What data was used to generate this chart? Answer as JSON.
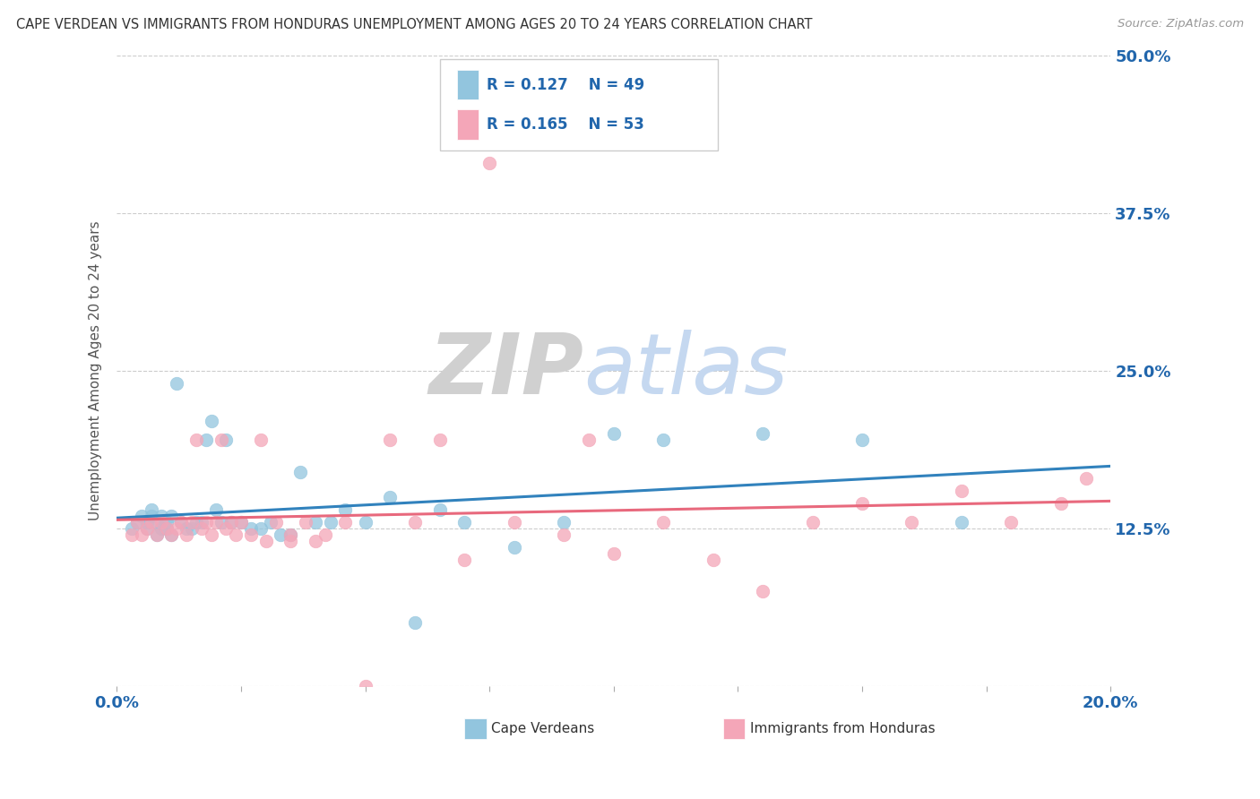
{
  "title": "CAPE VERDEAN VS IMMIGRANTS FROM HONDURAS UNEMPLOYMENT AMONG AGES 20 TO 24 YEARS CORRELATION CHART",
  "source": "Source: ZipAtlas.com",
  "ylabel": "Unemployment Among Ages 20 to 24 years",
  "xlim": [
    0.0,
    0.2
  ],
  "ylim": [
    0.0,
    0.5
  ],
  "yticks": [
    0.0,
    0.125,
    0.25,
    0.375,
    0.5
  ],
  "ytick_labels": [
    "",
    "12.5%",
    "25.0%",
    "37.5%",
    "50.0%"
  ],
  "xticks": [
    0.0,
    0.025,
    0.05,
    0.075,
    0.1,
    0.125,
    0.15,
    0.175,
    0.2
  ],
  "watermark_zip": "ZIP",
  "watermark_atlas": "atlas",
  "legend_R1": "R = 0.127",
  "legend_N1": "N = 49",
  "legend_R2": "R = 0.165",
  "legend_N2": "N = 53",
  "legend_label1": "Cape Verdeans",
  "legend_label2": "Immigrants from Honduras",
  "color_blue": "#92c5de",
  "color_pink": "#f4a6b8",
  "color_blue_line": "#3182bd",
  "color_pink_line": "#e8697d",
  "color_text_blue": "#2166ac",
  "color_grid": "#cccccc",
  "blue_x": [
    0.003,
    0.004,
    0.005,
    0.006,
    0.006,
    0.007,
    0.007,
    0.008,
    0.008,
    0.009,
    0.009,
    0.01,
    0.01,
    0.011,
    0.011,
    0.012,
    0.013,
    0.014,
    0.015,
    0.016,
    0.017,
    0.018,
    0.019,
    0.02,
    0.021,
    0.022,
    0.023,
    0.025,
    0.027,
    0.029,
    0.031,
    0.033,
    0.035,
    0.037,
    0.04,
    0.043,
    0.046,
    0.05,
    0.055,
    0.06,
    0.065,
    0.07,
    0.08,
    0.09,
    0.1,
    0.11,
    0.13,
    0.15,
    0.17
  ],
  "blue_y": [
    0.125,
    0.13,
    0.135,
    0.125,
    0.13,
    0.135,
    0.14,
    0.13,
    0.12,
    0.135,
    0.125,
    0.13,
    0.125,
    0.135,
    0.12,
    0.24,
    0.13,
    0.125,
    0.125,
    0.13,
    0.13,
    0.195,
    0.21,
    0.14,
    0.13,
    0.195,
    0.13,
    0.13,
    0.125,
    0.125,
    0.13,
    0.12,
    0.12,
    0.17,
    0.13,
    0.13,
    0.14,
    0.13,
    0.15,
    0.05,
    0.14,
    0.13,
    0.11,
    0.13,
    0.2,
    0.195,
    0.2,
    0.195,
    0.13
  ],
  "pink_x": [
    0.003,
    0.004,
    0.005,
    0.006,
    0.007,
    0.008,
    0.009,
    0.01,
    0.011,
    0.012,
    0.013,
    0.014,
    0.015,
    0.016,
    0.017,
    0.018,
    0.019,
    0.02,
    0.021,
    0.022,
    0.023,
    0.024,
    0.025,
    0.027,
    0.029,
    0.032,
    0.035,
    0.038,
    0.042,
    0.046,
    0.05,
    0.055,
    0.06,
    0.065,
    0.07,
    0.075,
    0.08,
    0.09,
    0.1,
    0.11,
    0.12,
    0.13,
    0.14,
    0.15,
    0.16,
    0.17,
    0.18,
    0.19,
    0.195,
    0.03,
    0.035,
    0.04,
    0.095
  ],
  "pink_y": [
    0.12,
    0.13,
    0.12,
    0.125,
    0.13,
    0.12,
    0.13,
    0.125,
    0.12,
    0.125,
    0.13,
    0.12,
    0.13,
    0.195,
    0.125,
    0.13,
    0.12,
    0.13,
    0.195,
    0.125,
    0.13,
    0.12,
    0.13,
    0.12,
    0.195,
    0.13,
    0.12,
    0.13,
    0.12,
    0.13,
    0.0,
    0.195,
    0.13,
    0.195,
    0.1,
    0.415,
    0.13,
    0.12,
    0.105,
    0.13,
    0.1,
    0.075,
    0.13,
    0.145,
    0.13,
    0.155,
    0.13,
    0.145,
    0.165,
    0.115,
    0.115,
    0.115,
    0.195
  ]
}
